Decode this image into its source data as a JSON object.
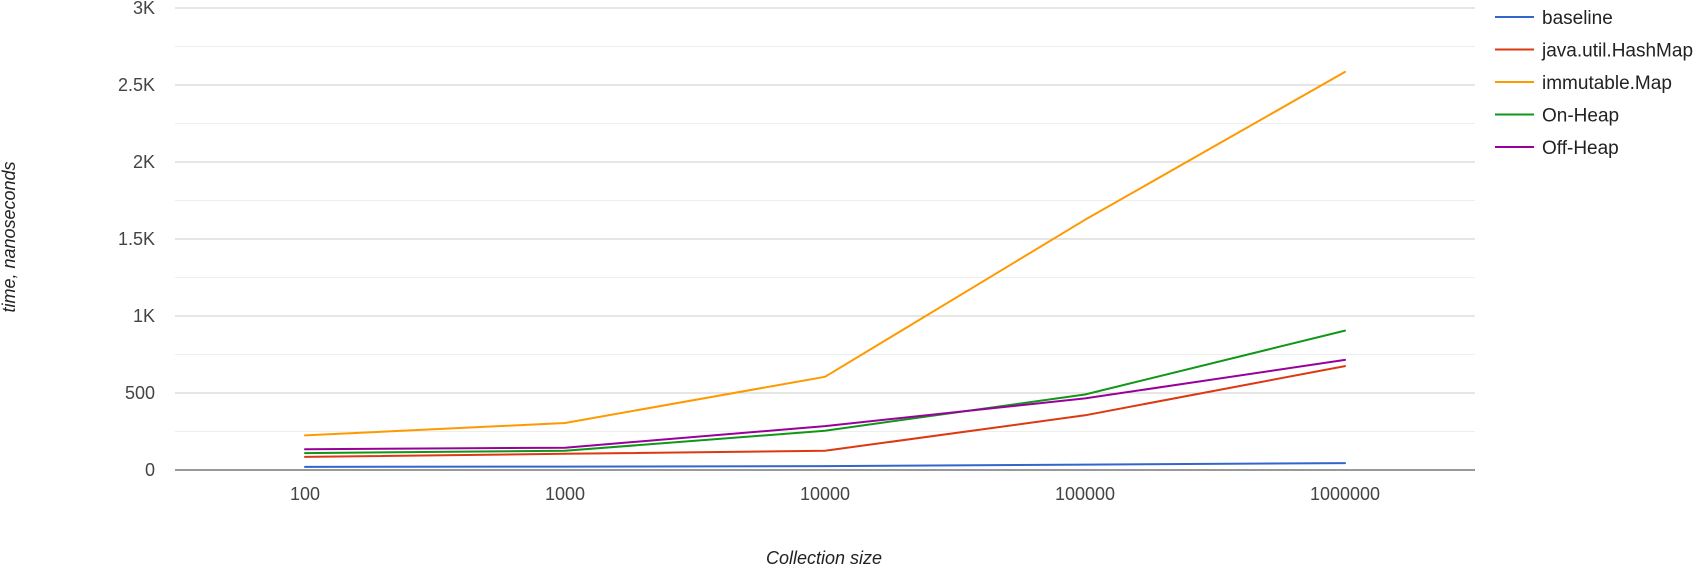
{
  "chart_data": {
    "type": "line",
    "title": "",
    "xlabel": "Collection size",
    "ylabel": "time, nanoseconds",
    "x_scale": "log",
    "categories": [
      "100",
      "1000",
      "10000",
      "100000",
      "1000000"
    ],
    "x_values": [
      100,
      1000,
      10000,
      100000,
      1000000
    ],
    "ylim": [
      0,
      3000
    ],
    "y_ticks": [
      0,
      500,
      1000,
      1500,
      2000,
      2500,
      3000
    ],
    "y_tick_labels": [
      "0",
      "500",
      "1K",
      "1.5K",
      "2K",
      "2.5K",
      "3K"
    ],
    "minor_gridlines": true,
    "legend_position": "right",
    "series": [
      {
        "name": "baseline",
        "color": "#3366cc",
        "values": [
          20,
          22,
          25,
          35,
          45
        ]
      },
      {
        "name": "java.util.HashMap",
        "color": "#dc3912",
        "values": [
          85,
          105,
          125,
          355,
          675
        ]
      },
      {
        "name": "immutable.Map",
        "color": "#ff9900",
        "values": [
          225,
          305,
          605,
          1625,
          2585
        ]
      },
      {
        "name": "On-Heap",
        "color": "#109618",
        "values": [
          110,
          125,
          255,
          490,
          905
        ]
      },
      {
        "name": "Off-Heap",
        "color": "#990099",
        "values": [
          135,
          145,
          285,
          465,
          715
        ]
      }
    ]
  }
}
